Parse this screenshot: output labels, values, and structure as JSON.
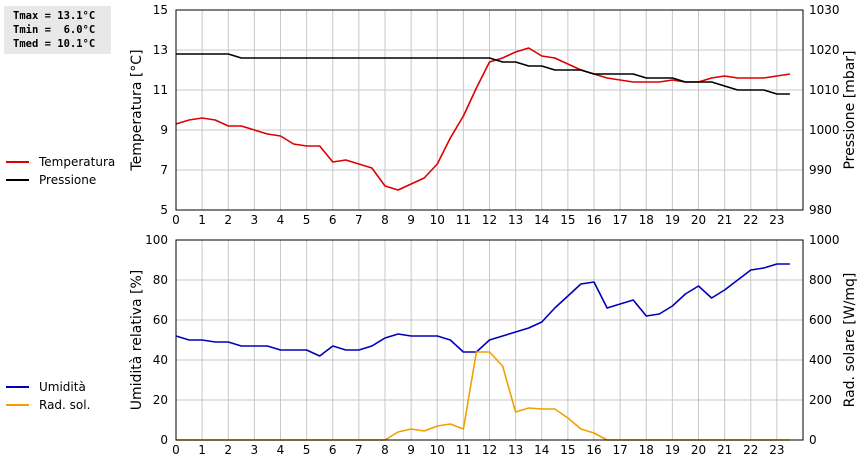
{
  "stats": {
    "tmax": "Tmax = 13.1°C",
    "tmin": "Tmin =  6.0°C",
    "tmed": "Tmed = 10.1°C"
  },
  "colors": {
    "temperature": "#dd0000",
    "pressure": "#000000",
    "humidity": "#0000bb",
    "radiation": "#f0a000",
    "grid": "#c8c8c8"
  },
  "chart_data": [
    {
      "type": "line",
      "ylabel": "Temperatura [°C]",
      "y2label": "Pressione [mbar]",
      "xlim": [
        0,
        24
      ],
      "ylim": [
        5,
        15
      ],
      "y2lim": [
        980,
        1030
      ],
      "xticks": [
        "0",
        "1",
        "2",
        "3",
        "4",
        "5",
        "6",
        "7",
        "8",
        "9",
        "10",
        "11",
        "12",
        "13",
        "14",
        "15",
        "16",
        "17",
        "18",
        "19",
        "20",
        "21",
        "22",
        "23"
      ],
      "yticks": [
        "5",
        "7",
        "9",
        "11",
        "13",
        "15"
      ],
      "y2ticks": [
        "980",
        "990",
        "1000",
        "1010",
        "1020",
        "1030"
      ],
      "grid": true,
      "legend_position": "left",
      "series": [
        {
          "name": "Temperatura",
          "axis": "left",
          "x": [
            0,
            0.5,
            1,
            1.5,
            2,
            2.5,
            3,
            3.5,
            4,
            4.5,
            5,
            5.5,
            6,
            6.5,
            7,
            7.5,
            8,
            8.5,
            9,
            9.5,
            10,
            10.5,
            11,
            11.5,
            12,
            12.5,
            13,
            13.5,
            14,
            14.5,
            15,
            15.5,
            16,
            16.5,
            17,
            17.5,
            18,
            18.5,
            19,
            19.5,
            20,
            20.5,
            21,
            21.5,
            22,
            22.5,
            23,
            23.5
          ],
          "y": [
            9.3,
            9.5,
            9.6,
            9.5,
            9.2,
            9.2,
            9.0,
            8.8,
            8.7,
            8.3,
            8.2,
            8.2,
            7.4,
            7.5,
            7.3,
            7.1,
            6.2,
            6.0,
            6.3,
            6.6,
            7.3,
            8.6,
            9.7,
            11.1,
            12.4,
            12.6,
            12.9,
            13.1,
            12.7,
            12.6,
            12.3,
            12.0,
            11.8,
            11.6,
            11.5,
            11.4,
            11.4,
            11.4,
            11.5,
            11.4,
            11.4,
            11.6,
            11.7,
            11.6,
            11.6,
            11.6,
            11.7,
            11.8
          ]
        },
        {
          "name": "Pressione",
          "axis": "right",
          "x": [
            0,
            0.5,
            1,
            1.5,
            2,
            2.5,
            3,
            3.5,
            4,
            4.5,
            5,
            5.5,
            6,
            6.5,
            7,
            7.5,
            8,
            8.5,
            9,
            9.5,
            10,
            10.5,
            11,
            11.5,
            12,
            12.5,
            13,
            13.5,
            14,
            14.5,
            15,
            15.5,
            16,
            16.5,
            17,
            17.5,
            18,
            18.5,
            19,
            19.5,
            20,
            20.5,
            21,
            21.5,
            22,
            22.5,
            23,
            23.5
          ],
          "y": [
            1019,
            1019,
            1019,
            1019,
            1019,
            1018,
            1018,
            1018,
            1018,
            1018,
            1018,
            1018,
            1018,
            1018,
            1018,
            1018,
            1018,
            1018,
            1018,
            1018,
            1018,
            1018,
            1018,
            1018,
            1018,
            1017,
            1017,
            1016,
            1016,
            1015,
            1015,
            1015,
            1014,
            1014,
            1014,
            1014,
            1013,
            1013,
            1013,
            1012,
            1012,
            1012,
            1011,
            1010,
            1010,
            1010,
            1009,
            1009
          ]
        }
      ]
    },
    {
      "type": "line",
      "ylabel": "Umidità relativa [%]",
      "y2label": "Rad. solare [W/mq]",
      "xlim": [
        0,
        24
      ],
      "ylim": [
        0,
        100
      ],
      "y2lim": [
        0,
        1000
      ],
      "xticks": [
        "0",
        "1",
        "2",
        "3",
        "4",
        "5",
        "6",
        "7",
        "8",
        "9",
        "10",
        "11",
        "12",
        "13",
        "14",
        "15",
        "16",
        "17",
        "18",
        "19",
        "20",
        "21",
        "22",
        "23"
      ],
      "yticks": [
        "0",
        "20",
        "40",
        "60",
        "80",
        "100"
      ],
      "y2ticks": [
        "0",
        "200",
        "400",
        "600",
        "800",
        "1000"
      ],
      "grid": true,
      "legend_position": "left",
      "series": [
        {
          "name": "Umidità",
          "axis": "left",
          "x": [
            0,
            0.5,
            1,
            1.5,
            2,
            2.5,
            3,
            3.5,
            4,
            4.5,
            5,
            5.5,
            6,
            6.5,
            7,
            7.5,
            8,
            8.5,
            9,
            9.5,
            10,
            10.5,
            11,
            11.5,
            12,
            12.5,
            13,
            13.5,
            14,
            14.5,
            15,
            15.5,
            16,
            16.5,
            17,
            17.5,
            18,
            18.5,
            19,
            19.5,
            20,
            20.5,
            21,
            21.5,
            22,
            22.5,
            23,
            23.5
          ],
          "y": [
            52,
            50,
            50,
            49,
            49,
            47,
            47,
            47,
            45,
            45,
            45,
            42,
            47,
            45,
            45,
            47,
            51,
            53,
            52,
            52,
            52,
            50,
            44,
            44,
            50,
            52,
            54,
            56,
            59,
            66,
            72,
            78,
            79,
            66,
            68,
            70,
            62,
            63,
            67,
            73,
            77,
            71,
            75,
            80,
            85,
            86,
            88,
            88
          ]
        },
        {
          "name": "Rad. sol.",
          "axis": "right",
          "x": [
            0,
            0.5,
            1,
            1.5,
            2,
            2.5,
            3,
            3.5,
            4,
            4.5,
            5,
            5.5,
            6,
            6.5,
            7,
            7.5,
            8,
            8.5,
            9,
            9.5,
            10,
            10.5,
            11,
            11.5,
            12,
            12.5,
            13,
            13.5,
            14,
            14.5,
            15,
            15.5,
            16,
            16.5,
            17,
            17.5,
            18,
            18.5,
            19,
            19.5,
            20,
            20.5,
            21,
            21.5,
            22,
            22.5,
            23,
            23.5
          ],
          "y": [
            0,
            0,
            0,
            0,
            0,
            0,
            0,
            0,
            0,
            0,
            0,
            0,
            0,
            0,
            0,
            0,
            0,
            40,
            55,
            45,
            70,
            80,
            55,
            440,
            440,
            370,
            140,
            160,
            155,
            155,
            110,
            55,
            35,
            0,
            0,
            0,
            0,
            0,
            0,
            0,
            0,
            0,
            0,
            0,
            0,
            0,
            0,
            0
          ]
        }
      ]
    }
  ]
}
